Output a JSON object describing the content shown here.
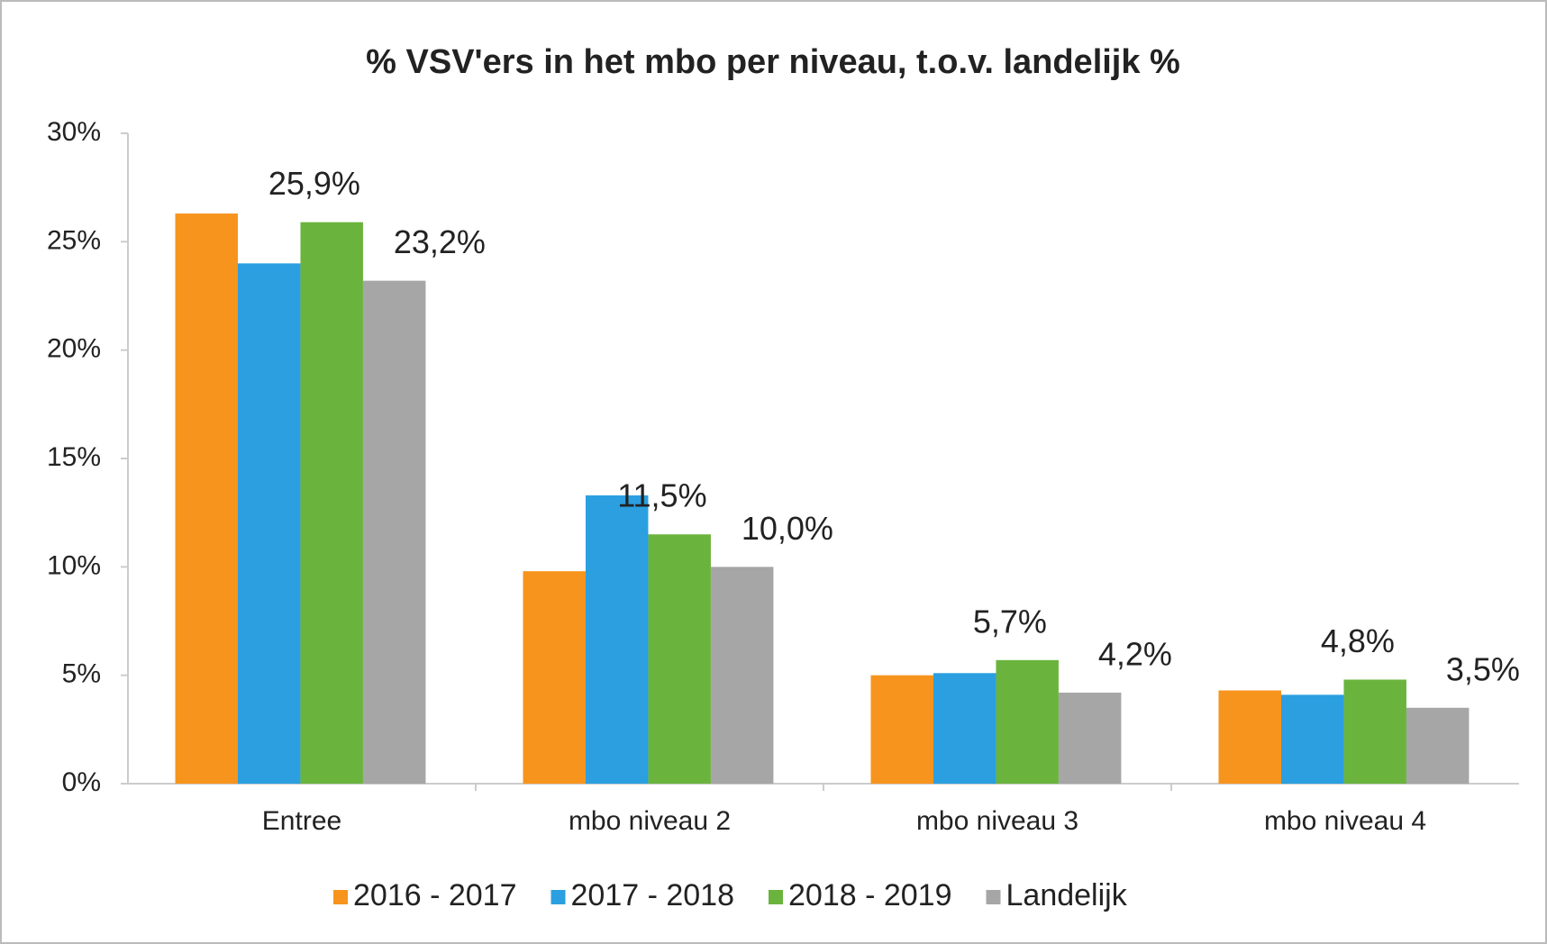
{
  "chart_data": {
    "type": "bar",
    "title": "% VSV'ers in het mbo per niveau, t.o.v. landelijk %",
    "categories": [
      "Entree",
      "mbo niveau 2",
      "mbo niveau 3",
      "mbo niveau 4"
    ],
    "series": [
      {
        "name": "2016 - 2017",
        "color": "#f7941d",
        "values": [
          26.3,
          9.8,
          5.0,
          4.3
        ]
      },
      {
        "name": "2017 - 2018",
        "color": "#2b9fe0",
        "values": [
          24.0,
          13.3,
          5.1,
          4.1
        ]
      },
      {
        "name": "2018 - 2019",
        "color": "#6ab43e",
        "values": [
          25.9,
          11.5,
          5.7,
          4.8
        ],
        "value_labels": [
          "25,9%",
          "11,5%",
          "5,7%",
          "4,8%"
        ]
      },
      {
        "name": "Landelijk",
        "color": "#a6a6a6",
        "values": [
          23.2,
          10.0,
          4.2,
          3.5
        ],
        "value_labels": [
          "23,2%",
          "10,0%",
          "4,2%",
          "3,5%"
        ]
      }
    ],
    "ylim": [
      0,
      30
    ],
    "yticks": [
      {
        "value": 0,
        "label": "0%"
      },
      {
        "value": 5,
        "label": "5%"
      },
      {
        "value": 10,
        "label": "10%"
      },
      {
        "value": 15,
        "label": "15%"
      },
      {
        "value": 20,
        "label": "20%"
      },
      {
        "value": 25,
        "label": "25%"
      },
      {
        "value": 30,
        "label": "30%"
      }
    ],
    "legend": "bottom"
  }
}
